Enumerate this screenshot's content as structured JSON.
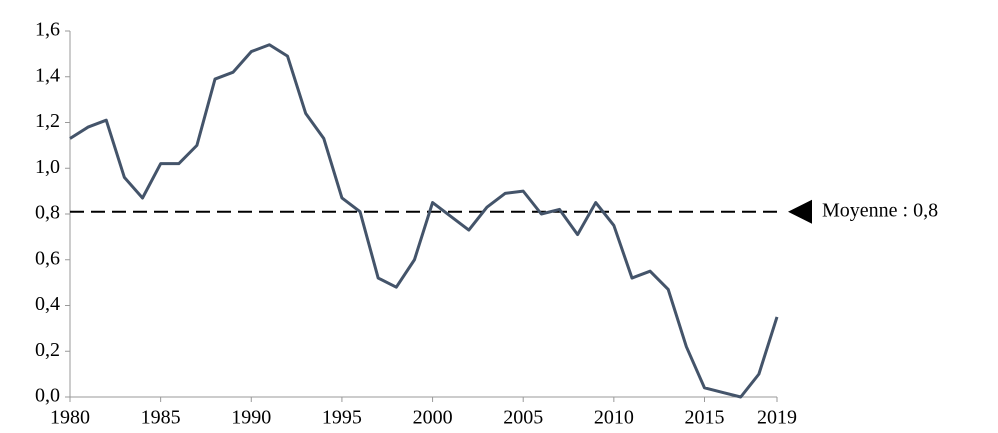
{
  "chart_data": {
    "type": "line",
    "x": [
      1980,
      1981,
      1982,
      1983,
      1984,
      1985,
      1986,
      1987,
      1988,
      1989,
      1990,
      1991,
      1992,
      1993,
      1994,
      1995,
      1996,
      1997,
      1998,
      1999,
      2000,
      2001,
      2002,
      2003,
      2004,
      2005,
      2006,
      2007,
      2008,
      2009,
      2010,
      2011,
      2012,
      2013,
      2014,
      2015,
      2016,
      2017,
      2018,
      2019
    ],
    "values": [
      1.13,
      1.18,
      1.21,
      0.96,
      0.87,
      1.02,
      1.02,
      1.1,
      1.39,
      1.42,
      1.51,
      1.54,
      1.49,
      1.24,
      1.13,
      0.87,
      0.81,
      0.52,
      0.48,
      0.6,
      0.85,
      0.79,
      0.73,
      0.83,
      0.89,
      0.9,
      0.8,
      0.82,
      0.71,
      0.85,
      0.75,
      0.52,
      0.55,
      0.47,
      0.22,
      0.04,
      0.02,
      0.0,
      0.1,
      0.35
    ],
    "color": "#44546a",
    "xlim": [
      1980,
      2019
    ],
    "xticks": [
      1980,
      1985,
      1990,
      1995,
      2000,
      2005,
      2010,
      2015,
      2019
    ],
    "ylim": [
      0,
      1.6
    ],
    "yticks": [
      {
        "value": 0,
        "label": "0,0"
      },
      {
        "value": 0.2,
        "label": "0,2"
      },
      {
        "value": 0.4,
        "label": "0,4"
      },
      {
        "value": 0.6,
        "label": "0,6"
      },
      {
        "value": 0.8,
        "label": "0,8"
      },
      {
        "value": 1.0,
        "label": "1,0"
      },
      {
        "value": 1.2,
        "label": "1,2"
      },
      {
        "value": 1.4,
        "label": "1,4"
      },
      {
        "value": 1.6,
        "label": "1,6"
      }
    ],
    "mean_line": {
      "value": 0.81,
      "label": "Moyenne : 0,8"
    }
  }
}
